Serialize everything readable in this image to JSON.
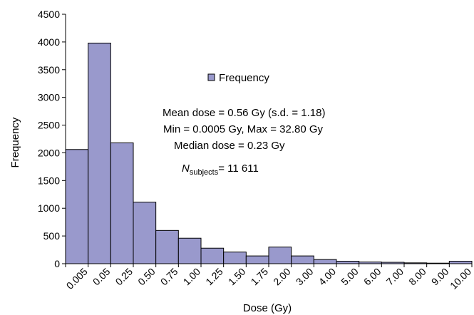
{
  "chart_data": {
    "type": "bar",
    "title": "",
    "xlabel": "Dose (Gy)",
    "ylabel": "Frequency",
    "ylim": [
      0,
      4500
    ],
    "yticks": [
      0,
      500,
      1000,
      1500,
      2000,
      2500,
      3000,
      3500,
      4000,
      4500
    ],
    "categories": [
      "0.005",
      "0.05",
      "0.25",
      "0.50",
      "0.75",
      "1.00",
      "1.25",
      "1.50",
      "1.75",
      "2.00",
      "3.00",
      "4.00",
      "5.00",
      "6.00",
      "7.00",
      "8.00",
      "9.00",
      "10.00"
    ],
    "series": [
      {
        "name": "Frequency",
        "color": "#9999cc",
        "values": [
          2060,
          3980,
          2180,
          1110,
          600,
          460,
          280,
          210,
          140,
          300,
          140,
          75,
          45,
          30,
          25,
          15,
          10,
          45
        ]
      }
    ],
    "grid": false,
    "legend": {
      "position": "upper-center",
      "entries": [
        "Frequency"
      ]
    },
    "annotations": {
      "mean": "Mean dose = 0.56 Gy (s.d. = 1.18)",
      "minmax": "Min = 0.0005 Gy, Max = 32.80 Gy",
      "median": "Median dose = 0.23 Gy",
      "n_main": "N",
      "n_sub": "subjects",
      "n_value": "= 11 611"
    }
  }
}
